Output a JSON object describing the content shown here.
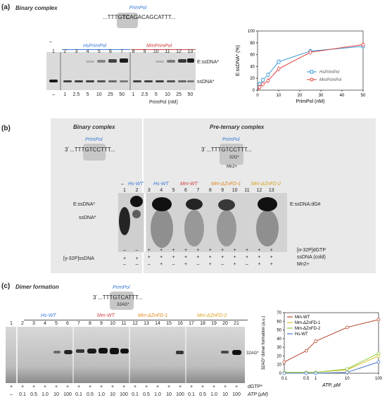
{
  "panel_a": {
    "letter": "(a)",
    "title": "Binary complex",
    "enzyme_label": "PrimPol",
    "sequence_left": "...TTTG",
    "sequence_bold": "TC",
    "sequence_right": "AGACAGCATTT...",
    "gel": {
      "dash": "–",
      "group1": "HsPrimPol",
      "group2": "MmPrimPol",
      "lane_numbers": [
        "1",
        "2",
        "3",
        "4",
        "5",
        "6",
        "7",
        "8",
        "9",
        "10",
        "11",
        "12",
        "13"
      ],
      "concentrations": [
        "–",
        "1",
        "2.5",
        "5",
        "10",
        "25",
        "50",
        "1",
        "2.5",
        "5",
        "10",
        "25",
        "50"
      ],
      "conc_label": "PrimPol (nM)",
      "band_upper": "E:ssDNA*",
      "band_lower": "ssDNA*"
    },
    "chart_data": {
      "type": "line",
      "xlabel": "PrimPol (nM)",
      "ylabel": "E:ssDNA* (%)",
      "xlim": [
        0,
        50
      ],
      "ylim": [
        0,
        100
      ],
      "xticks": [
        "0",
        "10",
        "20",
        "30",
        "40",
        "50"
      ],
      "yticks": [
        "0",
        "20",
        "40",
        "60",
        "80",
        "100"
      ],
      "series": [
        {
          "name": "HsPrimPol",
          "color": "#3a9ad9",
          "x": [
            1,
            2.5,
            5,
            10,
            25,
            50
          ],
          "y": [
            10,
            17,
            26,
            48,
            66,
            74
          ]
        },
        {
          "name": "MmPrimPol",
          "color": "#e03a3a",
          "x": [
            1,
            2.5,
            5,
            10,
            25,
            50
          ],
          "y": [
            5,
            10,
            16,
            36,
            64,
            77
          ]
        }
      ]
    }
  },
  "panel_b": {
    "letter": "(b)",
    "title_binary": "Binary complex",
    "title_preternary": "Pre-ternary complex",
    "enzyme_label": "PrimPol",
    "seq_binary": "3´...TTTGTCCTTT...",
    "seq_preternary": "3´...TTTGTCCTTT...",
    "incoming": "32G*",
    "mn": "Mn2+",
    "gel": {
      "dash": "–",
      "groups": [
        "Hs-WT",
        "Hs-WT",
        "Mm-WT",
        "Mm-ΔZnFD-1",
        "Mm-ΔZnFD-2"
      ],
      "lane_numbers": [
        "1",
        "2",
        "3",
        "4",
        "5",
        "6",
        "7",
        "8",
        "9",
        "10",
        "11",
        "12",
        "13"
      ],
      "band_upper": "E:ssDNA*",
      "band_lower": "ssDNA*",
      "band_right": "E:ssDNA:dG#"
    },
    "rows": [
      {
        "label": "[γ-32P]ssDNA",
        "values": [
          "+",
          "+",
          "",
          "",
          "",
          "",
          "",
          "",
          "",
          "",
          "",
          "",
          ""
        ]
      },
      {
        "label": "[α-32P]dGTP",
        "values": [
          "–",
          "–",
          "+",
          "+",
          "+",
          "+",
          "+",
          "+",
          "+",
          "+",
          "+",
          "+",
          "+"
        ]
      },
      {
        "label": "ssDNA (cold)",
        "values": [
          "",
          "",
          "+",
          "+",
          "+",
          "+",
          "+",
          "+",
          "+",
          "+",
          "+",
          "+",
          "+"
        ]
      },
      {
        "label": "Mn2+",
        "values": [
          "–",
          "–",
          "–",
          "+",
          "–",
          "+",
          "–",
          "+",
          "–",
          "+",
          "–",
          "+",
          "+"
        ]
      }
    ]
  },
  "panel_c": {
    "letter": "(c)",
    "title": "Dimer formation",
    "enzyme_label": "PrimPol",
    "sequence": "3´...TTTGTCATTT...",
    "incoming": "32AG*",
    "groups": [
      "Hs-WT",
      "Mm-WT",
      "Mm-ΔZnFD-1",
      "Mm-ΔZnFD-2"
    ],
    "lane_numbers": [
      "1",
      "2",
      "3",
      "4",
      "5",
      "6",
      "7",
      "8",
      "9",
      "10",
      "11",
      "12",
      "13",
      "14",
      "15",
      "16",
      "17",
      "18",
      "19",
      "20",
      "21"
    ],
    "dgtp_row": [
      "+",
      "+",
      "+",
      "+",
      "+",
      "+",
      "+",
      "+",
      "+",
      "+",
      "+",
      "+",
      "+",
      "+",
      "+",
      "+",
      "+",
      "+",
      "+",
      "+",
      "+"
    ],
    "atp_row": [
      "–",
      "0.1",
      "0.5",
      "1.0",
      "10",
      "100",
      "0.1",
      "0.5",
      "1.0",
      "10",
      "100",
      "0.1",
      "0.5",
      "1.0",
      "10",
      "100",
      "0.1",
      "0.5",
      "1.0",
      "10",
      "100"
    ],
    "dgtp_label": "dGTP*",
    "atp_label": "ATP (μM)",
    "band_label": "32AG*",
    "chart_data": {
      "type": "line",
      "xlabel": "ATP, μM",
      "ylabel": "32AG* dimer formation (a.u.)",
      "xscale": "log",
      "xticks": [
        "0.1",
        "0.5",
        "1",
        "10",
        "100"
      ],
      "ylim": [
        0,
        70
      ],
      "yticks": [
        "0",
        "10",
        "20",
        "30",
        "40",
        "50",
        "60",
        "70"
      ],
      "series": [
        {
          "name": "Mm-WT",
          "color": "#b5472b",
          "x": [
            0.1,
            0.5,
            1,
            10,
            100
          ],
          "y": [
            13,
            26,
            37,
            53,
            62
          ]
        },
        {
          "name": "Mm-ΔZnFD-1",
          "color": "#d8c020",
          "x": [
            0.1,
            0.5,
            1,
            10,
            100
          ],
          "y": [
            1,
            1,
            1,
            4,
            20
          ]
        },
        {
          "name": "Mm-ΔZnFD-2",
          "color": "#8dc63f",
          "x": [
            0.1,
            0.5,
            1,
            10,
            100
          ],
          "y": [
            1,
            1,
            1,
            5,
            23
          ]
        },
        {
          "name": "Hs-WT",
          "color": "#4a78c6",
          "x": [
            0.1,
            0.5,
            1,
            10,
            100
          ],
          "y": [
            0,
            0,
            0,
            1,
            13
          ]
        }
      ]
    }
  }
}
